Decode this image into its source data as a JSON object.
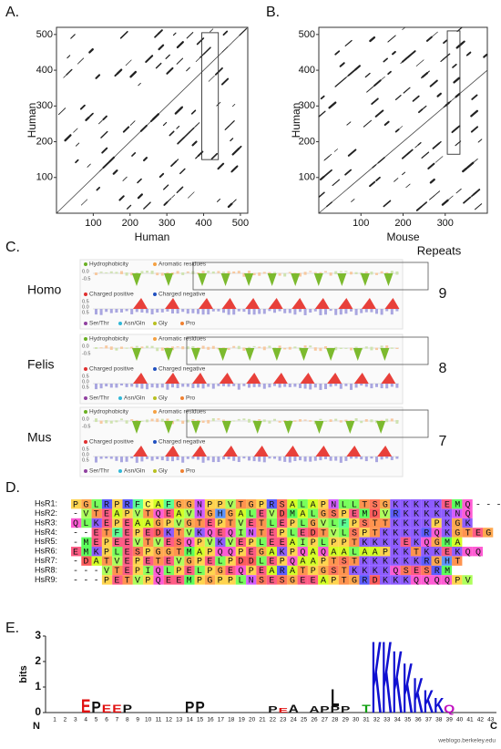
{
  "figure": {
    "panels": {
      "A": {
        "label": "A.",
        "xlabel": "Human",
        "ylabel": "Human",
        "xlim": [
          0,
          520
        ],
        "ylim": [
          0,
          520
        ],
        "xticks": [
          100,
          200,
          300,
          400,
          500
        ],
        "yticks": [
          100,
          200,
          300,
          400,
          500
        ]
      },
      "B": {
        "label": "B.",
        "xlabel": "Mouse",
        "ylabel": "Human",
        "xlim": [
          0,
          400
        ],
        "ylim": [
          0,
          520
        ],
        "xticks": [
          100,
          200,
          300
        ],
        "yticks": [
          100,
          200,
          300,
          400,
          500
        ]
      },
      "C": {
        "label": "C.",
        "column_title": "Repeats",
        "rows": [
          {
            "species": "Homo",
            "repeats": 9
          },
          {
            "species": "Felis",
            "repeats": 8
          },
          {
            "species": "Mus",
            "repeats": 7
          }
        ],
        "legend": {
          "hydrophobicity": "Hydrophobicity",
          "aromatic": "Aromatic residues",
          "positive": "Charged positive",
          "negative": "Charged negative",
          "ser_thr": "Ser/Thr",
          "asn_gln": "Asn/Gln",
          "gly": "Gly",
          "pro": "Pro"
        },
        "scale_labels": [
          "0.0",
          "-0.5"
        ],
        "charge_labels": [
          "0.5",
          "0.0",
          "0.5"
        ]
      },
      "D": {
        "label": "D.",
        "rows": [
          {
            "name": "HsR1:",
            "sequence": "PGLRPRFCAFGGNPPVTGPRSALAPNLLTSGKKKKKEMQ----"
          },
          {
            "name": "HsR2:",
            "sequence": "-VTEAPVTQEAVNGHGALEVDMALGSPEMDVRKKKKKNQ"
          },
          {
            "name": "HsR3:",
            "sequence": "QLKEPEAAGPVGTEPTVETLEPLGVLFPSTTKKKKPKGK"
          },
          {
            "name": "HsR4:",
            "sequence": "--ETFEPEDKTVKQEQINTEPLEDTVLSPTKKKKRQKGTEG"
          },
          {
            "name": "HsR5:",
            "sequence": "-MEPEEVTVESQPVKVEPLEEAIPLPPTKKKKEKQGMA"
          },
          {
            "name": "HsR6:",
            "sequence": "EMKPLESPGGTMAPQQPEGAKPQAQAALAAPKKTKKEKQQ"
          },
          {
            "name": "HsR7:",
            "sequence": "-DATVEPETEVGPELPDDLEPQAAPTSTKKKKKKRGHT"
          },
          {
            "name": "HsR8:",
            "sequence": "---VTEPIQLPELPGEQPEARATPGSTKKKKQSESRM"
          },
          {
            "name": "HsR9:",
            "sequence": "---PETVPQEEMPGPPLNSESGEEAPTGRDKKKQQQQPV"
          }
        ]
      },
      "E": {
        "label": "E.",
        "ylabel": "bits",
        "ylim": [
          0,
          3
        ],
        "yticks": [
          0,
          1,
          2,
          3
        ],
        "positions": [
          1,
          2,
          3,
          4,
          5,
          6,
          7,
          8,
          9,
          10,
          11,
          12,
          13,
          14,
          15,
          16,
          17,
          18,
          19,
          20,
          21,
          22,
          23,
          24,
          25,
          26,
          27,
          28,
          29,
          30,
          31,
          32,
          33,
          34,
          35,
          36,
          37,
          38,
          39,
          40,
          41,
          42,
          43
        ],
        "n_label": "N",
        "c_label": "C",
        "credit": "weblogo.berkeley.edu",
        "stacks": [
          {
            "position": 4,
            "letters": [
              {
                "letter": "E",
                "bits": 0.55
              }
            ]
          },
          {
            "position": 5,
            "letters": [
              {
                "letter": "P",
                "bits": 0.45
              }
            ]
          },
          {
            "position": 6,
            "letters": [
              {
                "letter": "E",
                "bits": 0.3
              }
            ]
          },
          {
            "position": 7,
            "letters": [
              {
                "letter": "E",
                "bits": 0.3
              }
            ]
          },
          {
            "position": 8,
            "letters": [
              {
                "letter": "P",
                "bits": 0.3
              }
            ]
          },
          {
            "position": 14,
            "letters": [
              {
                "letter": "P",
                "bits": 0.45
              }
            ]
          },
          {
            "position": 15,
            "letters": [
              {
                "letter": "P",
                "bits": 0.45
              }
            ]
          },
          {
            "position": 22,
            "letters": [
              {
                "letter": "P",
                "bits": 0.25
              }
            ]
          },
          {
            "position": 23,
            "letters": [
              {
                "letter": "E",
                "bits": 0.2
              }
            ]
          },
          {
            "position": 24,
            "letters": [
              {
                "letter": "A",
                "bits": 0.3
              }
            ]
          },
          {
            "position": 26,
            "letters": [
              {
                "letter": "A",
                "bits": 0.25
              }
            ]
          },
          {
            "position": 27,
            "letters": [
              {
                "letter": "P",
                "bits": 0.25
              }
            ]
          },
          {
            "position": 28,
            "letters": [
              {
                "letter": "P",
                "bits": 0.25
              },
              {
                "letter": "L",
                "bits": 0.7
              }
            ]
          },
          {
            "position": 29,
            "letters": [
              {
                "letter": "P",
                "bits": 0.25
              }
            ]
          },
          {
            "position": 31,
            "letters": [
              {
                "letter": "T",
                "bits": 0.3
              }
            ]
          },
          {
            "position": 32,
            "letters": [
              {
                "letter": "K",
                "bits": 2.9
              }
            ]
          },
          {
            "position": 33,
            "letters": [
              {
                "letter": "K",
                "bits": 2.9
              }
            ]
          },
          {
            "position": 34,
            "letters": [
              {
                "letter": "K",
                "bits": 2.5
              }
            ]
          },
          {
            "position": 35,
            "letters": [
              {
                "letter": "K",
                "bits": 2.0
              }
            ]
          },
          {
            "position": 36,
            "letters": [
              {
                "letter": "K",
                "bits": 1.4
              }
            ]
          },
          {
            "position": 37,
            "letters": [
              {
                "letter": "K",
                "bits": 0.9
              }
            ]
          },
          {
            "position": 38,
            "letters": [
              {
                "letter": "K",
                "bits": 0.6
              }
            ]
          },
          {
            "position": 39,
            "letters": [
              {
                "letter": "Q",
                "bits": 0.3
              }
            ]
          }
        ]
      }
    }
  }
}
